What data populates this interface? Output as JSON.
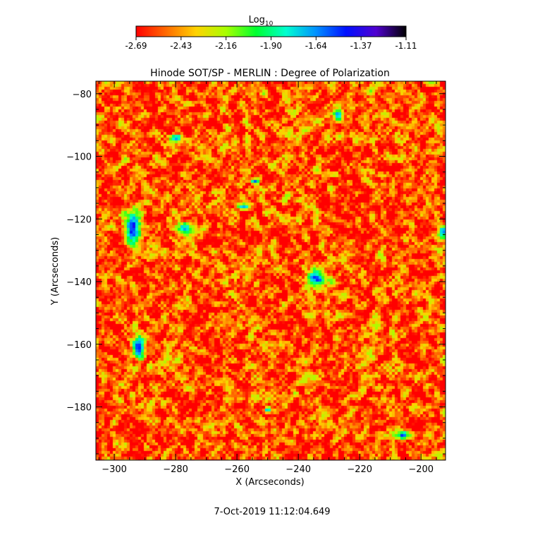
{
  "chart_data": {
    "type": "heatmap",
    "title": "Hinode SOT/SP - MERLIN : Degree of Polarization",
    "xlabel": "X (Arcseconds)",
    "ylabel": "Y (Arcseconds)",
    "xlim": [
      -306,
      -192
    ],
    "ylim": [
      -197,
      -76
    ],
    "x_ticks": [
      -300,
      -280,
      -260,
      -240,
      -220,
      -200
    ],
    "y_ticks": [
      -80,
      -100,
      -120,
      -140,
      -160,
      -180
    ],
    "colorbar": {
      "label_main": "Log",
      "label_sub": "10",
      "range": [
        -2.69,
        -1.11
      ],
      "ticks": [
        "-2.69",
        "-2.43",
        "-2.16",
        "-1.90",
        "-1.64",
        "-1.37",
        "-1.11"
      ],
      "colors": [
        "#ff0000",
        "#ff6a00",
        "#ffd200",
        "#a8ff00",
        "#00ff30",
        "#00ffd0",
        "#0090ff",
        "#0010ff",
        "#5000d0",
        "#000000"
      ]
    },
    "background_level": -2.55,
    "strong_regions": [
      {
        "x": -294,
        "y": -123,
        "rx": 2.5,
        "ry": 5,
        "level": -1.45
      },
      {
        "x": -292,
        "y": -161,
        "rx": 2,
        "ry": 4,
        "level": -1.5
      },
      {
        "x": -234,
        "y": -139,
        "rx": 3,
        "ry": 2.5,
        "level": -1.5
      },
      {
        "x": -254,
        "y": -108,
        "rx": 1.5,
        "ry": 1,
        "level": -1.55
      },
      {
        "x": -206,
        "y": -189,
        "rx": 2,
        "ry": 1.5,
        "level": -1.55
      },
      {
        "x": -277,
        "y": -123,
        "rx": 3,
        "ry": 2,
        "level": -1.7
      },
      {
        "x": -280,
        "y": -94,
        "rx": 2,
        "ry": 1,
        "level": -1.6
      },
      {
        "x": -227,
        "y": -87,
        "rx": 1.5,
        "ry": 2,
        "level": -1.6
      },
      {
        "x": -250,
        "y": -181,
        "rx": 1,
        "ry": 1,
        "level": -1.55
      },
      {
        "x": -258,
        "y": -116,
        "rx": 2,
        "ry": 1,
        "level": -1.65
      },
      {
        "x": -193,
        "y": -124,
        "rx": 1.5,
        "ry": 2,
        "level": -1.6
      }
    ]
  },
  "footer": {
    "timestamp": "7-Oct-2019 11:12:04.649"
  }
}
